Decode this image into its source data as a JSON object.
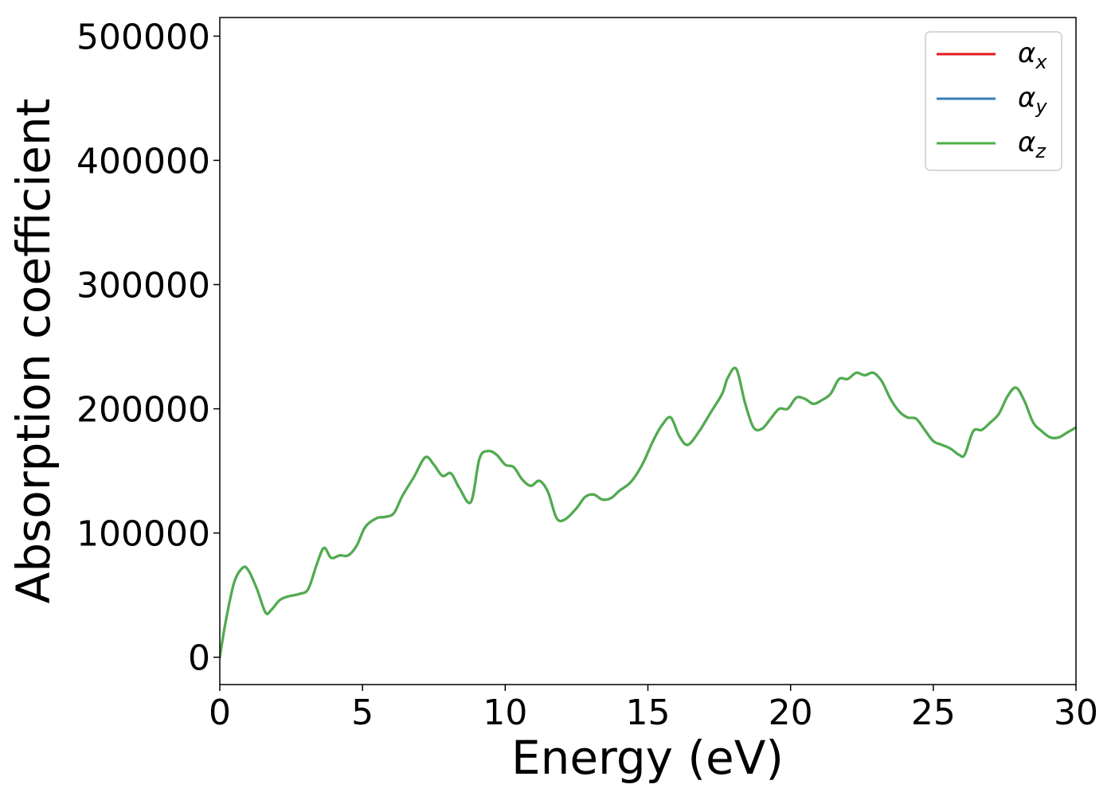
{
  "chart_data": {
    "type": "line",
    "title": "",
    "xlabel": "Energy (eV)",
    "ylabel": "Absorption coefficient",
    "xlim": [
      0,
      30
    ],
    "ylim": [
      -22000,
      515000
    ],
    "xticks": [
      0,
      5,
      10,
      15,
      20,
      25,
      30
    ],
    "yticks": [
      0,
      100000,
      200000,
      300000,
      400000,
      500000
    ],
    "grid": false,
    "legend": "top-right",
    "x": [
      0,
      0.2,
      0.5,
      0.8,
      1.0,
      1.3,
      1.6,
      1.8,
      2.1,
      2.4,
      2.8,
      3.1,
      3.4,
      3.65,
      3.9,
      4.2,
      4.5,
      4.8,
      5.1,
      5.5,
      5.8,
      6.1,
      6.4,
      6.8,
      7.2,
      7.5,
      7.8,
      8.1,
      8.4,
      8.8,
      9.1,
      9.4,
      9.7,
      10.0,
      10.3,
      10.6,
      10.9,
      11.2,
      11.5,
      11.8,
      12.1,
      12.5,
      12.8,
      13.1,
      13.4,
      13.7,
      14.0,
      14.4,
      14.8,
      15.2,
      15.5,
      15.8,
      16.1,
      16.4,
      16.8,
      17.2,
      17.6,
      17.8,
      18.1,
      18.4,
      18.7,
      19.0,
      19.3,
      19.6,
      19.9,
      20.2,
      20.5,
      20.8,
      21.1,
      21.4,
      21.7,
      22.0,
      22.3,
      22.6,
      22.9,
      23.2,
      23.5,
      23.8,
      24.1,
      24.4,
      24.7,
      25.0,
      25.3,
      25.6,
      25.9,
      26.1,
      26.4,
      26.7,
      27.0,
      27.3,
      27.6,
      27.9,
      28.2,
      28.5,
      28.8,
      29.1,
      29.4,
      29.7,
      30.0
    ],
    "series": [
      {
        "name": "α_x",
        "label_base": "α",
        "label_sub": "x",
        "color": "#e41a1c",
        "values": [
          0,
          28000,
          60000,
          72000,
          70000,
          55000,
          36000,
          38000,
          46000,
          49000,
          51000,
          55000,
          75000,
          88000,
          80000,
          82000,
          82000,
          90000,
          105000,
          112000,
          113000,
          116000,
          130000,
          145000,
          161000,
          155000,
          146000,
          148000,
          136000,
          125000,
          160000,
          166000,
          163000,
          155000,
          153000,
          143000,
          138000,
          142000,
          133000,
          112000,
          111000,
          120000,
          129000,
          131000,
          127000,
          128000,
          134000,
          141000,
          155000,
          175000,
          187000,
          193000,
          178000,
          171000,
          182000,
          197000,
          212000,
          225000,
          232000,
          205000,
          185000,
          184000,
          192000,
          200000,
          200000,
          209000,
          208000,
          204000,
          207000,
          212000,
          224000,
          224000,
          229000,
          227000,
          229000,
          222000,
          208000,
          198000,
          193000,
          192000,
          183000,
          174000,
          171000,
          168000,
          163000,
          163000,
          182000,
          183000,
          189000,
          196000,
          210000,
          217000,
          206000,
          189000,
          182000,
          177000,
          177000,
          181000,
          185000
        ]
      },
      {
        "name": "α_y",
        "label_base": "α",
        "label_sub": "y",
        "color": "#377eb8",
        "values": [
          0,
          28000,
          60000,
          72000,
          70000,
          55000,
          36000,
          38000,
          46000,
          49000,
          51000,
          55000,
          75000,
          88000,
          80000,
          82000,
          82000,
          90000,
          105000,
          112000,
          113000,
          116000,
          130000,
          145000,
          161000,
          155000,
          146000,
          148000,
          136000,
          125000,
          160000,
          166000,
          163000,
          155000,
          153000,
          143000,
          138000,
          142000,
          133000,
          112000,
          111000,
          120000,
          129000,
          131000,
          127000,
          128000,
          134000,
          141000,
          155000,
          175000,
          187000,
          193000,
          178000,
          171000,
          182000,
          197000,
          212000,
          225000,
          232000,
          205000,
          185000,
          184000,
          192000,
          200000,
          200000,
          209000,
          208000,
          204000,
          207000,
          212000,
          224000,
          224000,
          229000,
          227000,
          229000,
          222000,
          208000,
          198000,
          193000,
          192000,
          183000,
          174000,
          171000,
          168000,
          163000,
          163000,
          182000,
          183000,
          189000,
          196000,
          210000,
          217000,
          206000,
          189000,
          182000,
          177000,
          177000,
          181000,
          185000
        ]
      },
      {
        "name": "α_z",
        "label_base": "α",
        "label_sub": "z",
        "color": "#4daf4a",
        "values": [
          0,
          28000,
          60000,
          72000,
          70000,
          55000,
          36000,
          38000,
          46000,
          49000,
          51000,
          55000,
          75000,
          88000,
          80000,
          82000,
          82000,
          90000,
          105000,
          112000,
          113000,
          116000,
          130000,
          145000,
          161000,
          155000,
          146000,
          148000,
          136000,
          125000,
          160000,
          166000,
          163000,
          155000,
          153000,
          143000,
          138000,
          142000,
          133000,
          112000,
          111000,
          120000,
          129000,
          131000,
          127000,
          128000,
          134000,
          141000,
          155000,
          175000,
          187000,
          193000,
          178000,
          171000,
          182000,
          197000,
          212000,
          225000,
          232000,
          205000,
          185000,
          184000,
          192000,
          200000,
          200000,
          209000,
          208000,
          204000,
          207000,
          212000,
          224000,
          224000,
          229000,
          227000,
          229000,
          222000,
          208000,
          198000,
          193000,
          192000,
          183000,
          174000,
          171000,
          168000,
          163000,
          163000,
          182000,
          183000,
          189000,
          196000,
          210000,
          217000,
          206000,
          189000,
          182000,
          177000,
          177000,
          181000,
          185000
        ]
      }
    ]
  }
}
